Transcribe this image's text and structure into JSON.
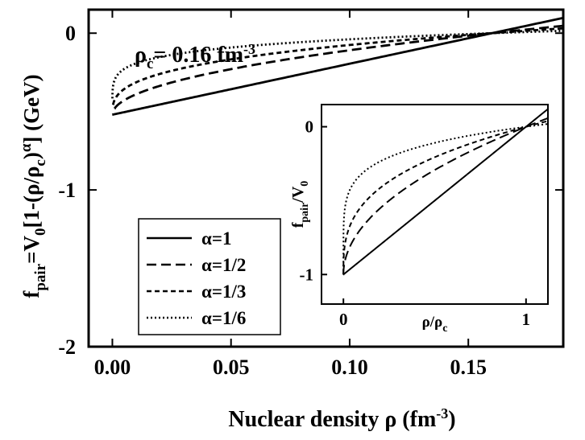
{
  "chart_data": [
    {
      "id": "main",
      "type": "line",
      "xlabel": "Nuclear density ρ (fm⁻³)",
      "ylabel": "f_pair = V₀[1-(ρ/ρc)^α] (GeV)",
      "annotation": "ρc= 0.16  fm-3",
      "xlim": [
        -0.01,
        0.19
      ],
      "ylim": [
        -2.0,
        0.15
      ],
      "xticks": [
        "0.00",
        "0.05",
        "0.10",
        "0.15"
      ],
      "xtick_values": [
        0.0,
        0.05,
        0.1,
        0.15
      ],
      "yticks": [
        "0",
        "-1",
        "-2"
      ],
      "ytick_values": [
        0,
        -1,
        -2
      ],
      "rho_c": 0.16,
      "V0": -0.52,
      "legend_position": "lower-left",
      "series": [
        {
          "name": "α=1",
          "alpha": 1.0,
          "x_start": 0.0,
          "dash": "solid"
        },
        {
          "name": "α=1/2",
          "alpha": 0.5,
          "x_start": 0.001,
          "dash": "long-dash"
        },
        {
          "name": "α=1/3",
          "alpha": 0.333333,
          "x_start": 0.0003,
          "dash": "short-dash"
        },
        {
          "name": "α=1/6",
          "alpha": 0.166667,
          "x_start": 1e-05,
          "dash": "dot"
        }
      ]
    },
    {
      "id": "inset",
      "type": "line",
      "xlabel": "ρ/ρc",
      "ylabel": "f_pair/V₀",
      "xlim": [
        -0.12,
        1.12
      ],
      "ylim": [
        -1.2,
        0.15
      ],
      "xticks": [
        "0",
        "1"
      ],
      "xtick_values": [
        0,
        1
      ],
      "yticks": [
        "0",
        "-1"
      ],
      "ytick_values": [
        0,
        -1
      ],
      "series": [
        {
          "name": "α=1",
          "alpha": 1.0,
          "dash": "solid"
        },
        {
          "name": "α=1/2",
          "alpha": 0.5,
          "dash": "long-dash"
        },
        {
          "name": "α=1/3",
          "alpha": 0.333333,
          "dash": "short-dash"
        },
        {
          "name": "α=1/6",
          "alpha": 0.166667,
          "dash": "dot"
        }
      ]
    }
  ]
}
